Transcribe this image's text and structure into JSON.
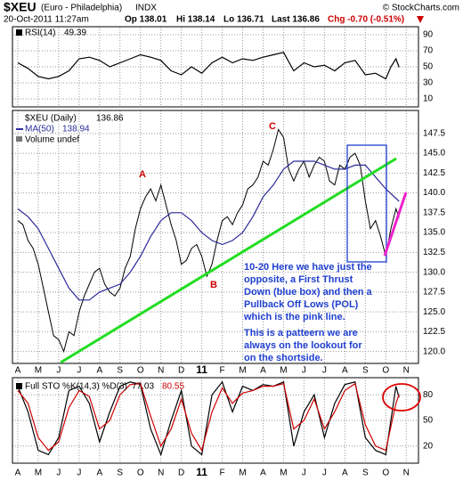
{
  "header": {
    "symbol": "$XEU",
    "name": "(Euro - Philadelphia)",
    "exchange": "INDX",
    "source": "© StockCharts.com",
    "date": "20-Oct-2011 11:27am",
    "open": "Op 138.01",
    "high": "Hi 138.14",
    "low": "Lo 136.71",
    "last": "Last 136.86",
    "change": "Chg -0.70 (-0.51%)"
  },
  "chart_data": [
    {
      "type": "line",
      "xlim": [
        -0.26,
        19.6
      ],
      "ylim": [
        0,
        100
      ],
      "yticks": [
        10,
        30,
        50,
        70,
        90
      ],
      "xticks": [
        0,
        1,
        2,
        3,
        4,
        5,
        6,
        7,
        8,
        9,
        10,
        11,
        12,
        13,
        14,
        15,
        16,
        17,
        18,
        19
      ],
      "grid": true,
      "series": [
        {
          "name": "RSI(14)",
          "color": "#000000",
          "x": [
            0,
            0.5,
            1,
            1.5,
            2,
            2.5,
            3,
            3.5,
            4,
            4.5,
            5,
            5.5,
            6,
            6.5,
            7,
            7.5,
            8,
            8.5,
            9,
            9.5,
            10,
            10.5,
            11,
            11.5,
            12,
            12.5,
            13,
            13.5,
            14,
            14.5,
            15,
            15.5,
            16,
            16.5,
            17,
            17.5,
            18,
            18.25,
            18.5,
            18.65
          ],
          "values": [
            55,
            48,
            38,
            35,
            38,
            45,
            60,
            62,
            58,
            50,
            55,
            60,
            65,
            62,
            58,
            45,
            40,
            50,
            42,
            55,
            62,
            55,
            60,
            58,
            62,
            65,
            68,
            45,
            55,
            50,
            52,
            45,
            55,
            58,
            40,
            42,
            35,
            50,
            60,
            49.39
          ]
        }
      ]
    },
    {
      "type": "line",
      "xlim": [
        -0.26,
        19.6
      ],
      "ylim": [
        118.5,
        150.4
      ],
      "yticks": [
        {
          "value": 120,
          "label": "120.0"
        },
        122.5,
        {
          "value": 125,
          "label": "125.0"
        },
        127.5,
        {
          "value": 130,
          "label": "130.0"
        },
        132.5,
        {
          "value": 135,
          "label": "135.0"
        },
        137.5,
        {
          "value": 140,
          "label": "140.0"
        },
        142.5,
        {
          "value": 145,
          "label": "145.0"
        },
        147.5
      ],
      "xticks": [
        {
          "value": 0,
          "label": "A"
        },
        {
          "value": 1,
          "label": "M"
        },
        {
          "value": 2,
          "label": "J"
        },
        {
          "value": 3,
          "label": "J"
        },
        {
          "value": 4,
          "label": "A"
        },
        {
          "value": 5,
          "label": "S"
        },
        {
          "value": 6,
          "label": "O"
        },
        {
          "value": 7,
          "label": "N"
        },
        {
          "value": 8,
          "label": "D"
        },
        {
          "value": 9,
          "label": "11"
        },
        {
          "value": 10,
          "label": "F"
        },
        {
          "value": 11,
          "label": "M"
        },
        {
          "value": 12,
          "label": "A"
        },
        {
          "value": 13,
          "label": "M"
        },
        {
          "value": 14,
          "label": "J"
        },
        {
          "value": 15,
          "label": "J"
        },
        {
          "value": 16,
          "label": "A"
        },
        {
          "value": 17,
          "label": "S"
        },
        {
          "value": 18,
          "label": "O"
        },
        {
          "value": 19,
          "label": "N"
        }
      ],
      "grid": true,
      "legend_note": "Volume undef",
      "annotations": [
        "A",
        "B",
        "C"
      ],
      "note": [
        "10-20 Here we have just the",
        "opposite, a First Thrust",
        "Down (blue box) and then a",
        "Pullback Off Lows (POL)",
        "which is the pink line.",
        "This is a patteern we are",
        "always on the lookout for",
        "on the shortside."
      ],
      "series": [
        {
          "name": "$XEU (Daily)",
          "color": "#000000",
          "x": [
            0,
            0.25,
            0.5,
            0.75,
            1,
            1.25,
            1.5,
            1.75,
            2,
            2.25,
            2.5,
            2.75,
            3,
            3.25,
            3.5,
            3.75,
            4,
            4.25,
            4.5,
            4.75,
            5,
            5.25,
            5.5,
            5.75,
            6,
            6.25,
            6.5,
            6.75,
            7,
            7.25,
            7.5,
            7.75,
            8,
            8.25,
            8.5,
            8.75,
            9,
            9.25,
            9.5,
            9.75,
            10,
            10.25,
            10.5,
            10.75,
            11,
            11.25,
            11.5,
            11.75,
            12,
            12.25,
            12.5,
            12.75,
            13,
            13.25,
            13.5,
            13.75,
            14,
            14.25,
            14.5,
            14.75,
            15,
            15.25,
            15.5,
            15.75,
            16,
            16.25,
            16.5,
            16.75,
            17,
            17.25,
            17.5,
            17.75,
            18,
            18.25,
            18.5,
            18.65
          ],
          "values": [
            136.5,
            136,
            134,
            133,
            131,
            128,
            125,
            122,
            121.5,
            120,
            122.5,
            122,
            125,
            127,
            128.5,
            130,
            130.5,
            128.5,
            127.5,
            127,
            128,
            130.5,
            132,
            135.5,
            138,
            139.5,
            140.5,
            139,
            141,
            138.5,
            136,
            134,
            131,
            131.5,
            133,
            133.5,
            132,
            129.5,
            131,
            134,
            136.5,
            137,
            136,
            137.5,
            138.5,
            140.5,
            141,
            142,
            144,
            143.5,
            145.5,
            148,
            147,
            143,
            141.5,
            143,
            144,
            142,
            143.5,
            144.5,
            144,
            141.5,
            141,
            143.5,
            143,
            144.5,
            145,
            143.5,
            139,
            135.5,
            136.5,
            134.5,
            132,
            135.5,
            138,
            136.86
          ]
        },
        {
          "name": "MA(50)",
          "color": "#2b2b9a",
          "x": [
            0,
            0.5,
            1,
            1.5,
            2,
            2.5,
            3,
            3.5,
            4,
            4.5,
            5,
            5.5,
            6,
            6.5,
            7,
            7.5,
            8,
            8.5,
            9,
            9.5,
            10,
            10.5,
            11,
            11.5,
            12,
            12.5,
            13,
            13.5,
            14,
            14.5,
            15,
            15.5,
            16,
            16.5,
            17,
            17.5,
            18,
            18.65
          ],
          "values": [
            138,
            137,
            135.5,
            133,
            130.5,
            128,
            126.5,
            126.5,
            127.5,
            128,
            128.5,
            130,
            132,
            134.5,
            136.5,
            137.5,
            137.5,
            136.5,
            135,
            134,
            133.5,
            134,
            135,
            137,
            139.5,
            141,
            143,
            144,
            144,
            144,
            143.5,
            143,
            143,
            143.5,
            143.5,
            142,
            140.5,
            138.94
          ]
        }
      ]
    },
    {
      "type": "line",
      "title": "Full STO %K(14,3) %D(3)",
      "xlim": [
        -0.26,
        19.6
      ],
      "ylim": [
        0,
        100
      ],
      "yticks": [
        20,
        50,
        80
      ],
      "xticks": [
        {
          "value": 0,
          "label": "A"
        },
        {
          "value": 1,
          "label": "M"
        },
        {
          "value": 2,
          "label": "J"
        },
        {
          "value": 3,
          "label": "J"
        },
        {
          "value": 4,
          "label": "A"
        },
        {
          "value": 5,
          "label": "S"
        },
        {
          "value": 6,
          "label": "O"
        },
        {
          "value": 7,
          "label": "N"
        },
        {
          "value": 8,
          "label": "D"
        },
        {
          "value": 9,
          "label": "11"
        },
        {
          "value": 10,
          "label": "F"
        },
        {
          "value": 11,
          "label": "M"
        },
        {
          "value": 12,
          "label": "A"
        },
        {
          "value": 13,
          "label": "M"
        },
        {
          "value": 14,
          "label": "J"
        },
        {
          "value": 15,
          "label": "J"
        },
        {
          "value": 16,
          "label": "A"
        },
        {
          "value": 17,
          "label": "S"
        },
        {
          "value": 18,
          "label": "O"
        },
        {
          "value": 19,
          "label": "N"
        }
      ],
      "grid": true,
      "series": [
        {
          "name": "%K",
          "color": "#000000",
          "x": [
            0,
            0.5,
            1,
            1.5,
            2,
            2.5,
            3,
            3.5,
            4,
            4.5,
            5,
            5.5,
            6,
            6.5,
            7,
            7.5,
            8,
            8.5,
            9,
            9.5,
            10,
            10.5,
            11,
            11.5,
            12,
            12.5,
            13,
            13.5,
            14,
            14.5,
            15,
            15.5,
            16,
            16.5,
            17,
            17.5,
            18,
            18.5,
            18.65
          ],
          "values": [
            90,
            60,
            15,
            10,
            30,
            85,
            90,
            70,
            25,
            60,
            90,
            95,
            92,
            40,
            10,
            50,
            85,
            20,
            10,
            80,
            95,
            60,
            90,
            85,
            92,
            90,
            95,
            20,
            60,
            80,
            30,
            70,
            92,
            95,
            30,
            15,
            10,
            90,
            77.03
          ]
        },
        {
          "name": "%D",
          "color": "#cc0000",
          "x": [
            0,
            0.5,
            1,
            1.5,
            2,
            2.5,
            3,
            3.5,
            4,
            4.5,
            5,
            5.5,
            6,
            6.5,
            7,
            7.5,
            8,
            8.5,
            9,
            9.5,
            10,
            10.5,
            11,
            11.5,
            12,
            12.5,
            13,
            13.5,
            14,
            14.5,
            15,
            15.5,
            16,
            16.5,
            17,
            17.5,
            18,
            18.5,
            18.65
          ],
          "values": [
            85,
            70,
            30,
            15,
            25,
            65,
            85,
            78,
            40,
            50,
            80,
            92,
            93,
            55,
            20,
            40,
            75,
            35,
            15,
            60,
            88,
            70,
            82,
            85,
            90,
            90,
            93,
            40,
            50,
            75,
            40,
            60,
            85,
            93,
            45,
            20,
            15,
            70,
            80.55
          ]
        }
      ]
    }
  ]
}
